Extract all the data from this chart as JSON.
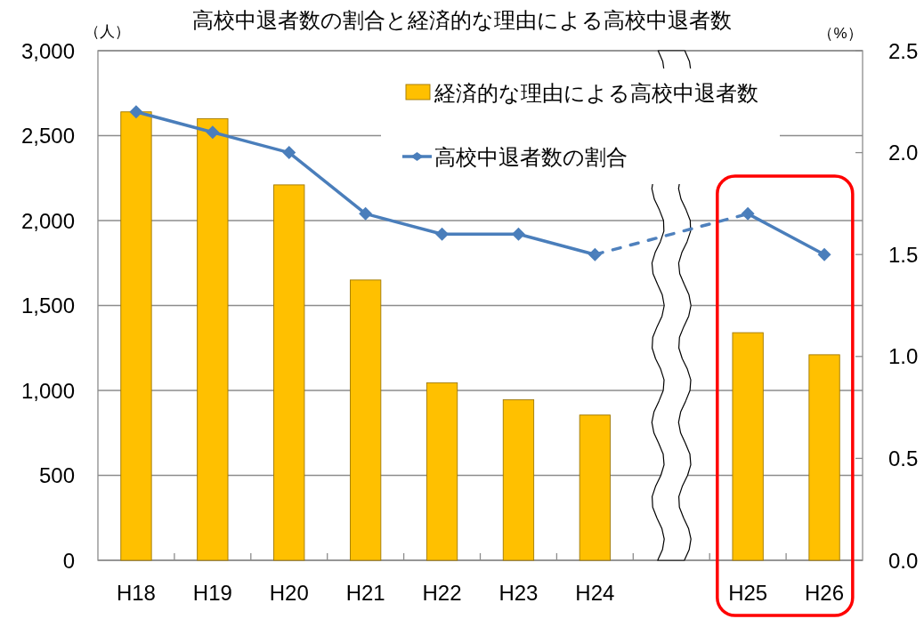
{
  "chart_data": {
    "type": "bar",
    "title": "高校中退者数の割合と経済的な理由による高校中退者数",
    "ylabel": "（人）",
    "y2label": "（%）",
    "categories": [
      "H18",
      "H19",
      "H20",
      "H21",
      "H22",
      "H23",
      "H24",
      null,
      "H25",
      "H26"
    ],
    "series": [
      {
        "name": "経済的な理由による高校中退者数",
        "type": "bar",
        "color": "#ffc000",
        "values": [
          2640,
          2600,
          2210,
          1650,
          1045,
          945,
          855,
          null,
          1340,
          1210
        ]
      },
      {
        "name": "高校中退者数の割合",
        "type": "line",
        "axis": "y2",
        "color": "#4a7ebb",
        "marker": "diamond",
        "line_style": "solid",
        "values": [
          2.2,
          2.1,
          2.0,
          1.7,
          1.6,
          1.6,
          1.5,
          null,
          1.7,
          1.5
        ]
      },
      {
        "type": "line",
        "axis": "y2",
        "color": "#4f81bd",
        "marker": "none",
        "line_style": "dashed",
        "x": [
          "H24",
          "H25"
        ],
        "values": [
          1.5,
          1.7
        ]
      }
    ],
    "ylim": [
      0,
      3000
    ],
    "yticks": [
      0,
      500,
      {
        "value": 1000,
        "label": "1,000"
      },
      {
        "value": 1500,
        "label": "1,500"
      },
      {
        "value": 2000,
        "label": "2,000"
      },
      {
        "value": 2500,
        "label": "2,500"
      },
      {
        "value": 3000,
        "label": "3,000"
      }
    ],
    "y2lim": [
      0,
      2.5
    ],
    "y2ticks": [
      {
        "value": 0,
        "label": "0.0"
      },
      0.5,
      {
        "value": 1,
        "label": "1.0"
      },
      1.5,
      {
        "value": 2,
        "label": "2.0"
      },
      2.5
    ],
    "grid": "y",
    "legend": "top right"
  }
}
